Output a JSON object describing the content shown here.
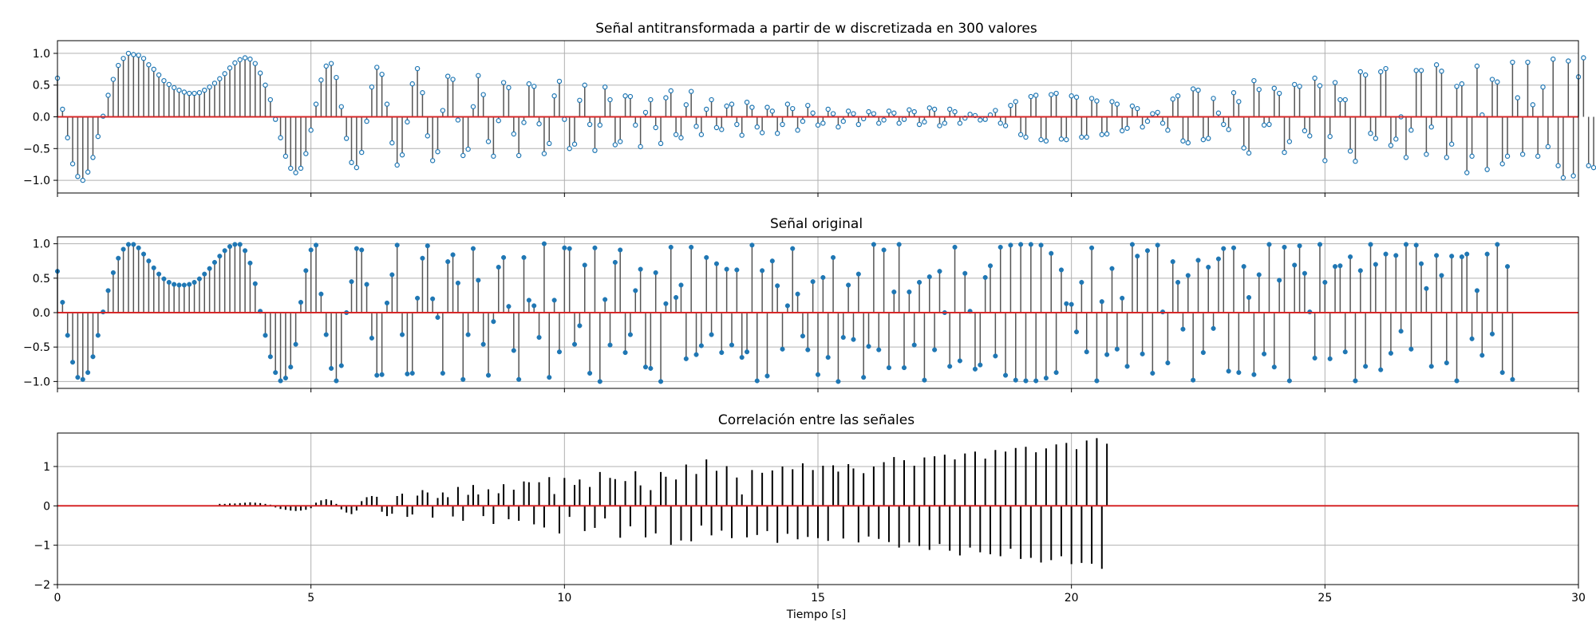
{
  "figure": {
    "xlabel": "Tiempo [s]",
    "x_ticks": [
      "0",
      "5",
      "10",
      "15",
      "20",
      "25",
      "30"
    ]
  },
  "chart_data": [
    {
      "type": "stem",
      "title": "Señal antitransformada a partir de w discretizada en 300 valores",
      "xlim": [
        0,
        30
      ],
      "ylim": [
        -1.2,
        1.2
      ],
      "x_ticks": [
        0,
        5,
        10,
        15,
        20,
        25,
        30
      ],
      "y_ticks": [
        -1.0,
        -0.5,
        0.0,
        0.5,
        1.0
      ],
      "y_tick_labels": [
        "−1.0",
        "−0.5",
        "0.0",
        "0.5",
        "1.0"
      ],
      "grid": true,
      "series": [
        {
          "marker": "open-circle",
          "n_samples": 300,
          "x_start": 0,
          "x_step": 0.1,
          "values": [
            0.61,
            0.12,
            -0.33,
            -0.74,
            -0.94,
            -1.0,
            -0.87,
            -0.64,
            -0.31,
            0.01,
            0.34,
            0.59,
            0.81,
            0.92,
            1.0,
            0.98,
            0.97,
            0.92,
            0.82,
            0.75,
            0.66,
            0.57,
            0.51,
            0.46,
            0.42,
            0.39,
            0.37,
            0.37,
            0.38,
            0.42,
            0.47,
            0.53,
            0.6,
            0.68,
            0.77,
            0.85,
            0.9,
            0.93,
            0.91,
            0.84,
            0.69,
            0.5,
            0.27,
            -0.04,
            -0.33,
            -0.62,
            -0.81,
            -0.88,
            -0.81,
            -0.58,
            -0.21,
            0.2,
            0.58,
            0.8,
            0.84,
            0.62,
            0.16,
            -0.34,
            -0.72,
            -0.8,
            -0.56,
            -0.07,
            0.47,
            0.78,
            0.67,
            0.2,
            -0.41,
            -0.76,
            -0.6,
            -0.08,
            0.52,
            0.76,
            0.38,
            -0.3,
            -0.69,
            -0.55,
            0.1,
            0.64,
            0.59,
            -0.05,
            -0.61,
            -0.51,
            0.16,
            0.65,
            0.35,
            -0.39,
            -0.62,
            -0.06,
            0.54,
            0.46,
            -0.27,
            -0.61,
            -0.09,
            0.52,
            0.48,
            -0.11,
            -0.58,
            -0.42,
            0.33,
            0.56,
            -0.04,
            -0.5,
            -0.43,
            0.26,
            0.5,
            -0.12,
            -0.53,
            -0.13,
            0.47,
            0.27,
            -0.44,
            -0.39,
            0.33,
            0.32,
            -0.13,
            -0.47,
            0.07,
            0.27,
            -0.17,
            -0.42,
            0.3,
            0.41,
            -0.28,
            -0.33,
            0.19,
            0.4,
            -0.15,
            -0.28,
            0.12,
            0.27,
            -0.17,
            -0.2,
            0.17,
            0.2,
            -0.12,
            -0.29,
            0.23,
            0.15,
            -0.16,
            -0.25,
            0.15,
            0.09,
            -0.26,
            -0.12,
            0.2,
            0.13,
            -0.21,
            -0.07,
            0.18,
            0.06,
            -0.13,
            -0.1,
            0.12,
            0.05,
            -0.16,
            -0.07,
            0.09,
            0.05,
            -0.12,
            -0.03,
            0.08,
            0.05,
            -0.1,
            -0.05,
            0.09,
            0.06,
            -0.1,
            -0.04,
            0.11,
            0.08,
            -0.12,
            -0.08,
            0.14,
            0.12,
            -0.14,
            -0.1,
            0.12,
            0.08,
            -0.1,
            -0.02,
            0.04,
            0.02,
            -0.05,
            -0.04,
            0.03,
            0.1,
            -0.1,
            -0.14,
            0.18,
            0.24,
            -0.28,
            -0.32,
            0.32,
            0.34,
            -0.36,
            -0.38,
            0.35,
            0.37,
            -0.35,
            -0.36,
            0.33,
            0.31,
            -0.32,
            -0.32,
            0.29,
            0.25,
            -0.28,
            -0.27,
            0.24,
            0.2,
            -0.22,
            -0.18,
            0.17,
            0.13,
            -0.16,
            -0.07,
            0.05,
            0.07,
            -0.1,
            -0.21,
            0.28,
            0.33,
            -0.38,
            -0.41,
            0.44,
            0.42,
            -0.36,
            -0.34,
            0.29,
            0.06,
            -0.12,
            -0.2,
            0.38,
            0.24,
            -0.49,
            -0.57,
            0.57,
            0.43,
            -0.13,
            -0.12,
            0.45,
            0.37,
            -0.56,
            -0.39,
            0.51,
            0.48,
            -0.22,
            -0.3,
            0.61,
            0.49,
            -0.69,
            -0.31,
            0.54,
            0.27,
            0.27,
            -0.54,
            -0.7,
            0.71,
            0.66,
            -0.26,
            -0.34,
            0.71,
            0.76,
            -0.45,
            -0.35,
            0.0,
            -0.64,
            -0.21,
            0.73,
            0.73,
            -0.59,
            -0.16,
            0.82,
            0.72,
            -0.64,
            -0.43,
            0.48,
            0.52,
            -0.88,
            -0.62,
            0.8,
            0.03,
            -0.83,
            0.59,
            0.55,
            -0.74,
            -0.62,
            0.86,
            0.3,
            -0.59,
            0.86,
            0.19,
            -0.62,
            0.47,
            -0.47,
            0.91,
            -0.77,
            -0.96,
            0.88,
            -0.93,
            0.63,
            0.93,
            -0.77,
            -0.8,
            0.93,
            0.46
          ]
        }
      ]
    },
    {
      "type": "stem",
      "title": "Señal original",
      "xlim": [
        0,
        30
      ],
      "ylim": [
        -1.1,
        1.1
      ],
      "x_ticks": [
        0,
        5,
        10,
        15,
        20,
        25,
        30
      ],
      "y_ticks": [
        -1.0,
        -0.5,
        0.0,
        0.5,
        1.0
      ],
      "y_tick_labels": [
        "−1.0",
        "−0.5",
        "0.0",
        "0.5",
        "1.0"
      ],
      "grid": true,
      "series": [
        {
          "marker": "filled-circle",
          "n_samples": 300,
          "x_start": 0,
          "x_step": 0.1,
          "values": [
            0.6,
            0.15,
            -0.33,
            -0.72,
            -0.94,
            -0.97,
            -0.87,
            -0.64,
            -0.33,
            0.01,
            0.32,
            0.58,
            0.79,
            0.92,
            0.99,
            0.99,
            0.94,
            0.85,
            0.75,
            0.65,
            0.56,
            0.49,
            0.44,
            0.41,
            0.4,
            0.4,
            0.41,
            0.44,
            0.49,
            0.56,
            0.64,
            0.73,
            0.82,
            0.9,
            0.96,
            0.99,
            0.99,
            0.9,
            0.72,
            0.42,
            0.02,
            -0.33,
            -0.64,
            -0.87,
            -0.99,
            -0.95,
            -0.79,
            -0.46,
            0.15,
            0.61,
            0.91,
            0.98,
            0.27,
            -0.32,
            -0.81,
            -0.99,
            -0.77,
            0.0,
            0.45,
            0.93,
            0.91,
            0.41,
            -0.37,
            -0.91,
            -0.9,
            0.14,
            0.55,
            0.98,
            -0.32,
            -0.89,
            -0.88,
            0.21,
            0.79,
            0.97,
            0.2,
            -0.07,
            -0.88,
            0.74,
            0.84,
            0.43,
            -0.97,
            -0.32,
            0.93,
            0.47,
            -0.46,
            -0.91,
            -0.13,
            0.66,
            0.8,
            0.09,
            -0.55,
            -0.97,
            0.8,
            0.18,
            0.1,
            -0.36,
            1.0,
            -0.94,
            0.18,
            -0.57,
            0.94,
            0.93,
            -0.46,
            -0.19,
            0.69,
            -0.88,
            0.94,
            -1.0,
            0.19,
            -0.47,
            0.73,
            0.91,
            -0.58,
            -0.32,
            0.32,
            0.63,
            -0.79,
            -0.81,
            0.58,
            -1.0,
            0.13,
            0.95,
            0.22,
            0.4,
            -0.67,
            0.95,
            -0.61,
            -0.48,
            0.8,
            -0.32,
            0.71,
            -0.58,
            0.63,
            -0.47,
            0.62,
            -0.65,
            -0.57,
            0.98,
            -0.99,
            0.61,
            -0.92,
            0.75,
            0.39,
            -0.53,
            0.1,
            0.93,
            0.27,
            -0.34,
            -0.54,
            0.45,
            -0.9,
            0.51,
            -0.65,
            0.8,
            -1.0,
            -0.36,
            0.4,
            -0.39,
            0.56,
            -0.94,
            -0.49,
            0.99,
            -0.54,
            0.91,
            -0.8,
            0.3,
            0.99,
            -0.8,
            0.3,
            -0.47,
            0.44,
            -0.98,
            0.52,
            -0.54,
            0.6,
            0.0,
            -0.78,
            0.95,
            -0.7,
            0.57,
            0.02,
            -0.82,
            -0.76,
            0.51,
            0.68,
            -0.63,
            0.95,
            -0.91,
            0.98,
            -0.98,
            0.99,
            -0.99,
            0.99,
            -0.99,
            0.98,
            -0.95,
            0.86,
            -0.87,
            0.62,
            0.13,
            0.12,
            -0.28,
            0.44,
            -0.57,
            0.94,
            -0.99,
            0.16,
            -0.61,
            0.64,
            -0.53,
            0.21,
            -0.78,
            0.99,
            0.82,
            -0.6,
            0.9,
            -0.88,
            0.98,
            0.01,
            -0.73,
            0.74,
            0.44,
            -0.24,
            0.54,
            -0.98,
            0.76,
            -0.58,
            0.66,
            -0.23,
            0.78,
            0.93,
            -0.85,
            0.94,
            -0.87,
            0.67,
            0.22,
            -0.9,
            0.55,
            -0.6,
            0.99,
            -0.79,
            0.47,
            0.95,
            -0.99,
            0.69,
            0.97,
            0.57,
            0.01,
            -0.66,
            0.99,
            0.44,
            -0.67,
            0.67,
            0.68,
            -0.57,
            0.81,
            -0.99,
            0.61,
            -0.78,
            0.99,
            0.7,
            -0.83,
            0.85,
            -0.59,
            0.83,
            -0.27,
            0.99,
            -0.53,
            0.98,
            0.71,
            0.35,
            -0.78,
            0.83,
            0.54,
            -0.73,
            0.82,
            -0.99,
            0.81,
            0.85,
            -0.38,
            0.32,
            -0.62,
            0.85,
            -0.31,
            0.99,
            -0.87,
            0.67,
            -0.97
          ]
        }
      ]
    },
    {
      "type": "stem",
      "title": "Correlación entre las señales",
      "xlim": [
        0,
        30
      ],
      "ylim": [
        -2,
        1.85
      ],
      "x_ticks": [
        0,
        5,
        10,
        15,
        20,
        25,
        30
      ],
      "x_tick_labels": [
        "0",
        "5",
        "10",
        "15",
        "20",
        "25",
        "30"
      ],
      "y_ticks": [
        -2,
        -1,
        0,
        1
      ],
      "y_tick_labels": [
        "−2",
        "−1",
        "0",
        "1"
      ],
      "xlabel": "Tiempo [s]",
      "grid": true,
      "series": [
        {
          "marker": "none",
          "x_start": 3.2,
          "x_step": 0.1,
          "values": [
            0.05,
            0.05,
            0.06,
            0.06,
            0.07,
            0.08,
            0.09,
            0.08,
            0.07,
            0.05,
            0.03,
            -0.04,
            -0.08,
            -0.1,
            -0.12,
            -0.13,
            -0.12,
            -0.1,
            -0.06,
            0.08,
            0.14,
            0.17,
            0.14,
            0.05,
            -0.09,
            -0.17,
            -0.21,
            -0.12,
            0.12,
            0.22,
            0.25,
            0.23,
            -0.15,
            -0.26,
            -0.2,
            0.25,
            0.31,
            -0.28,
            -0.22,
            0.26,
            0.4,
            0.34,
            -0.3,
            0.2,
            0.34,
            0.22,
            -0.27,
            0.48,
            -0.38,
            0.28,
            0.53,
            0.29,
            -0.26,
            0.42,
            -0.46,
            0.32,
            0.55,
            -0.34,
            0.41,
            -0.38,
            0.62,
            0.6,
            -0.47,
            0.6,
            -0.55,
            0.73,
            0.3,
            -0.7,
            0.71,
            -0.28,
            0.53,
            0.67,
            -0.64,
            0.48,
            -0.56,
            0.86,
            -0.32,
            0.71,
            0.68,
            -0.81,
            0.63,
            -0.52,
            0.88,
            0.52,
            -0.8,
            0.4,
            -0.7,
            0.86,
            0.74,
            -0.99,
            0.67,
            -0.88,
            1.05,
            -0.9,
            0.81,
            -0.5,
            1.18,
            -0.75,
            0.89,
            -0.63,
            1.01,
            -0.82,
            0.72,
            0.29,
            -0.8,
            0.91,
            -0.74,
            0.84,
            -0.64,
            0.9,
            -0.94,
            1.0,
            -0.71,
            0.93,
            -0.85,
            1.08,
            -0.79,
            0.91,
            -0.82,
            1.02,
            -0.89,
            1.03,
            0.87,
            -0.83,
            1.06,
            0.95,
            -0.93,
            0.83,
            -0.78,
            1.0,
            -0.84,
            1.11,
            -0.92,
            1.24,
            -1.06,
            1.16,
            -0.93,
            1.02,
            -1.02,
            1.23,
            -1.12,
            1.26,
            -0.97,
            1.3,
            -1.14,
            1.18,
            -1.26,
            1.33,
            -1.06,
            1.38,
            -1.18,
            1.2,
            -1.23,
            1.42,
            -1.28,
            1.38,
            -1.09,
            1.47,
            -1.35,
            1.5,
            -1.32,
            1.36,
            -1.44,
            1.46,
            -1.38,
            1.56,
            -1.28,
            1.6,
            -1.48,
            1.44,
            -1.45,
            1.66,
            -1.47,
            1.72,
            -1.6,
            1.58
          ]
        }
      ]
    }
  ]
}
